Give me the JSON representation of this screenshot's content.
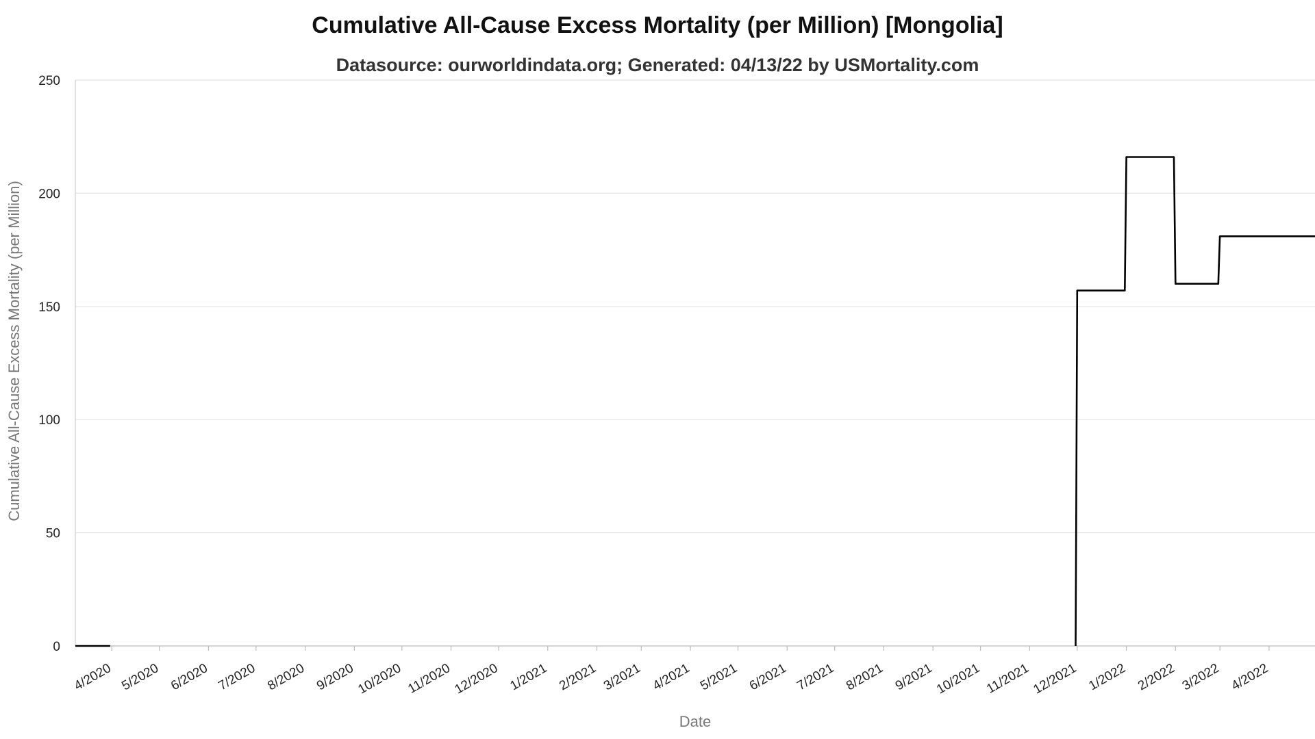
{
  "chart_data": {
    "type": "line",
    "title": "Cumulative All-Cause Excess Mortality (per Million) [Mongolia]",
    "subtitle": "Datasource: ourworldindata.org; Generated: 04/13/22 by USMortality.com",
    "xlabel": "Date",
    "ylabel": "Cumulative All-Cause Excess Mortality (per Million)",
    "ylim": [
      0,
      250
    ],
    "yticks": [
      0,
      50,
      100,
      150,
      200,
      250
    ],
    "xlim": [
      "2020-03-09",
      "2022-04-30"
    ],
    "xtick_dates": [
      "2020-04-01",
      "2020-05-01",
      "2020-06-01",
      "2020-07-01",
      "2020-08-01",
      "2020-09-01",
      "2020-10-01",
      "2020-11-01",
      "2020-12-01",
      "2021-01-01",
      "2021-02-01",
      "2021-03-01",
      "2021-04-01",
      "2021-05-01",
      "2021-06-01",
      "2021-07-01",
      "2021-08-01",
      "2021-09-01",
      "2021-10-01",
      "2021-11-01",
      "2021-12-01",
      "2022-01-01",
      "2022-02-01",
      "2022-03-01",
      "2022-04-01"
    ],
    "xtick_labels": [
      "4/2020",
      "5/2020",
      "6/2020",
      "7/2020",
      "8/2020",
      "9/2020",
      "10/2020",
      "11/2020",
      "12/2020",
      "1/2021",
      "2/2021",
      "3/2021",
      "4/2021",
      "5/2021",
      "6/2021",
      "7/2021",
      "8/2021",
      "9/2021",
      "10/2021",
      "11/2021",
      "12/2021",
      "1/2022",
      "2/2022",
      "3/2022",
      "4/2022"
    ],
    "grid": true,
    "series": [
      {
        "color": "#000000",
        "points": [
          {
            "x": "2020-03-09",
            "y": 0
          },
          {
            "x": "2020-03-31",
            "y": 0
          }
        ]
      },
      {
        "color": "#000000",
        "points": [
          {
            "x": "2021-11-30",
            "y": 0
          },
          {
            "x": "2021-12-01",
            "y": 157
          },
          {
            "x": "2021-12-31",
            "y": 157
          },
          {
            "x": "2022-01-01",
            "y": 216
          },
          {
            "x": "2022-01-31",
            "y": 216
          },
          {
            "x": "2022-02-01",
            "y": 160
          },
          {
            "x": "2022-02-28",
            "y": 160
          },
          {
            "x": "2022-03-01",
            "y": 181
          },
          {
            "x": "2022-04-30",
            "y": 181
          }
        ]
      }
    ]
  }
}
